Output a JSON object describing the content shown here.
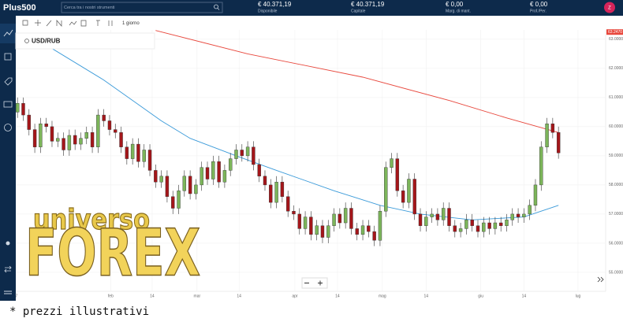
{
  "header": {
    "logo": "Plus500",
    "search": "Cerca tra i nostri strumenti",
    "stats": [
      {
        "value": "€ 40.371,19",
        "label": "Disponibile"
      },
      {
        "value": "€ 40.371,19",
        "label": "Capitale"
      },
      {
        "value": "€ 0,00",
        "label": "Marg. di mant."
      },
      {
        "value": "€ 0,00",
        "label": "Prof./Per."
      }
    ],
    "avatar": "Z"
  },
  "toolbar": {
    "interval": "1 giorno"
  },
  "instrument": "USD/RUB",
  "chart_data": {
    "type": "candlestick",
    "up_color": "#7cb55a",
    "down_color": "#a4161a",
    "grid": true,
    "open": [
      60.5,
      60.8,
      60.4,
      59.9,
      59.3,
      60.1,
      60.0,
      59.5,
      59.6,
      59.2,
      59.7,
      59.4,
      59.6,
      59.8,
      59.3,
      60.4,
      60.2,
      59.9,
      59.8,
      59.3,
      58.9,
      59.4,
      58.8,
      59.2,
      58.5,
      58.1,
      58.3,
      57.6,
      57.2,
      57.8,
      58.3,
      57.7,
      58.0,
      58.6,
      58.2,
      58.8,
      58.1,
      58.5,
      58.9,
      59.2,
      59.0,
      59.3,
      58.7,
      58.3,
      58.0,
      57.4,
      58.1,
      57.6,
      57.1,
      57.0,
      56.5,
      56.9,
      56.3,
      56.6,
      56.2,
      56.6,
      57.0,
      56.7,
      57.2,
      56.5,
      56.3,
      56.6,
      56.4,
      56.1,
      57.1,
      58.6,
      58.9,
      57.8,
      57.4,
      58.2,
      57.0,
      56.6,
      56.9,
      57.0,
      56.8,
      57.2,
      56.6,
      56.4,
      56.5,
      56.8,
      56.6,
      56.4,
      56.7,
      56.5,
      56.7,
      56.6,
      56.8,
      57.0,
      56.9,
      57.0,
      57.3,
      58.0,
      59.3,
      60.1,
      59.8
    ],
    "high": [
      61.0,
      61.0,
      60.6,
      60.1,
      60.3,
      60.3,
      60.2,
      59.8,
      59.8,
      59.9,
      59.9,
      59.8,
      60.0,
      60.0,
      60.6,
      60.6,
      60.4,
      60.1,
      60.0,
      59.5,
      59.6,
      59.6,
      59.4,
      59.4,
      58.7,
      58.5,
      58.5,
      57.8,
      58.0,
      58.5,
      58.5,
      58.2,
      58.8,
      58.8,
      59.0,
      59.0,
      58.7,
      59.1,
      59.4,
      59.4,
      59.5,
      59.5,
      58.9,
      58.5,
      58.2,
      58.3,
      58.3,
      57.8,
      57.3,
      57.2,
      57.1,
      57.1,
      56.8,
      56.8,
      56.8,
      57.2,
      57.2,
      57.4,
      57.4,
      56.7,
      56.8,
      56.8,
      56.6,
      57.3,
      58.8,
      59.1,
      59.1,
      58.0,
      58.4,
      58.4,
      57.2,
      57.1,
      57.2,
      57.2,
      57.4,
      57.4,
      56.8,
      56.7,
      57.0,
      57.0,
      56.8,
      56.9,
      56.9,
      56.9,
      56.9,
      57.0,
      57.2,
      57.2,
      57.2,
      57.5,
      58.2,
      59.5,
      60.3,
      60.3,
      60.0
    ],
    "low": [
      60.3,
      60.2,
      59.7,
      59.1,
      59.1,
      59.8,
      59.3,
      59.3,
      59.0,
      59.0,
      59.2,
      59.2,
      59.4,
      59.1,
      59.1,
      60.0,
      59.7,
      59.6,
      59.1,
      58.7,
      58.7,
      58.6,
      58.6,
      58.3,
      57.9,
      57.9,
      57.4,
      57.0,
      57.0,
      57.6,
      57.5,
      57.5,
      57.8,
      58.0,
      58.0,
      57.9,
      57.9,
      58.3,
      58.7,
      58.8,
      58.8,
      58.5,
      58.1,
      57.8,
      57.2,
      57.2,
      57.4,
      56.9,
      56.8,
      56.3,
      56.3,
      56.1,
      56.1,
      56.0,
      56.0,
      56.4,
      56.5,
      56.5,
      56.3,
      56.1,
      56.1,
      56.2,
      55.9,
      55.9,
      56.9,
      58.4,
      57.6,
      57.2,
      57.2,
      56.8,
      56.4,
      56.4,
      56.7,
      56.6,
      56.6,
      56.4,
      56.2,
      56.2,
      56.3,
      56.4,
      56.2,
      56.2,
      56.3,
      56.3,
      56.4,
      56.4,
      56.6,
      56.7,
      56.7,
      56.8,
      57.1,
      57.8,
      59.1,
      59.6,
      58.9
    ],
    "close": [
      60.8,
      60.4,
      59.9,
      59.3,
      60.1,
      60.0,
      59.5,
      59.6,
      59.2,
      59.7,
      59.4,
      59.6,
      59.8,
      59.3,
      60.4,
      60.2,
      59.9,
      59.8,
      59.3,
      58.9,
      59.4,
      58.8,
      59.2,
      58.5,
      58.1,
      58.3,
      57.6,
      57.2,
      57.8,
      58.3,
      57.7,
      58.0,
      58.6,
      58.2,
      58.8,
      58.1,
      58.5,
      58.9,
      59.2,
      59.0,
      59.3,
      58.7,
      58.3,
      58.0,
      57.4,
      58.1,
      57.6,
      57.1,
      57.0,
      56.5,
      56.9,
      56.3,
      56.6,
      56.2,
      56.6,
      57.0,
      56.7,
      57.2,
      56.5,
      56.3,
      56.6,
      56.4,
      56.1,
      57.1,
      58.6,
      58.9,
      57.8,
      57.4,
      58.2,
      57.0,
      56.6,
      56.9,
      57.0,
      56.8,
      57.2,
      56.6,
      56.4,
      56.5,
      56.8,
      56.6,
      56.4,
      56.7,
      56.5,
      56.7,
      56.6,
      56.8,
      57.0,
      56.9,
      57.0,
      57.3,
      58.0,
      59.3,
      60.1,
      59.8,
      59.1
    ],
    "overlays": [
      {
        "color": "#3a9ad9",
        "x": [
          -0.3,
          5,
          15,
          25,
          30,
          38,
          45,
          55,
          63,
          70,
          79,
          88,
          94
        ],
        "values": [
          63.1,
          62.8,
          61.6,
          60.2,
          59.6,
          59.0,
          58.5,
          57.8,
          57.3,
          57.0,
          56.8,
          56.9,
          57.3
        ]
      },
      {
        "color": "#e8473c",
        "x": [
          24,
          40,
          60,
          75,
          85,
          94
        ],
        "values": [
          63.3,
          62.5,
          61.7,
          60.9,
          60.3,
          59.8
        ]
      }
    ],
    "price_tag": {
      "value": 63.247,
      "label": "63.2470",
      "color": "#e8473c"
    },
    "xlim": [
      -0.3,
      102.2
    ],
    "ylim": [
      54.35,
      63.32
    ],
    "xticks": [
      {
        "value": -0.2,
        "label": "7"
      },
      {
        "value": 16.2,
        "label": "feb"
      },
      {
        "value": 23.4,
        "label": "14"
      },
      {
        "value": 31.2,
        "label": "mar"
      },
      {
        "value": 38.5,
        "label": "14"
      },
      {
        "value": 48.2,
        "label": "apr"
      },
      {
        "value": 55.6,
        "label": "14"
      },
      {
        "value": 63.4,
        "label": "mag"
      },
      {
        "value": 71,
        "label": "14"
      },
      {
        "value": 80.5,
        "label": "giu"
      },
      {
        "value": 88,
        "label": "14"
      },
      {
        "value": 97.4,
        "label": "lug"
      }
    ],
    "yticks": [
      {
        "value": 55,
        "label": "55.00000"
      },
      {
        "value": 56,
        "label": "56.00000"
      },
      {
        "value": 57,
        "label": "57.00000"
      },
      {
        "value": 58,
        "label": "58.00000"
      },
      {
        "value": 59,
        "label": "59.00000"
      },
      {
        "value": 60,
        "label": "60.00000"
      },
      {
        "value": 61,
        "label": "61.00000"
      },
      {
        "value": 62,
        "label": "62.00000"
      },
      {
        "value": 63,
        "label": "63.00000"
      }
    ]
  },
  "watermark": {
    "top": "universo",
    "bottom": "FOREX"
  },
  "footnote": "* prezzi illustrativi"
}
